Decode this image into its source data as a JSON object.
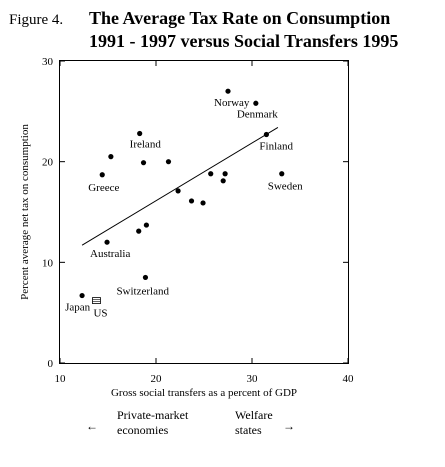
{
  "figure": {
    "label": "Figure 4.",
    "title_line1": "The Average Tax Rate on Consumption",
    "title_line2": "1991 - 1997 versus Social Transfers 1995"
  },
  "chart_data": {
    "type": "scatter",
    "xlabel": "Gross social transfers as a percent of GDP",
    "ylabel": "Percent average net tax on consumption",
    "xlim": [
      10,
      40
    ],
    "ylim": [
      0,
      30
    ],
    "x_ticks": [
      10,
      20,
      30,
      40
    ],
    "y_ticks": [
      0,
      10,
      20,
      30
    ],
    "grid": false,
    "points": [
      {
        "x": 12.3,
        "y": 6.7,
        "label": "Japan"
      },
      {
        "x": 18.3,
        "y": 22.8,
        "label": "Ireland"
      },
      {
        "x": 15.3,
        "y": 20.5,
        "label": ""
      },
      {
        "x": 14.4,
        "y": 18.7,
        "label": "Greece"
      },
      {
        "x": 18.7,
        "y": 19.9,
        "label": ""
      },
      {
        "x": 21.3,
        "y": 20.0,
        "label": ""
      },
      {
        "x": 14.9,
        "y": 12.0,
        "label": "Australia"
      },
      {
        "x": 18.2,
        "y": 13.1,
        "label": ""
      },
      {
        "x": 19.0,
        "y": 13.7,
        "label": ""
      },
      {
        "x": 18.9,
        "y": 8.5,
        "label": "Switzerland"
      },
      {
        "x": 22.3,
        "y": 17.1,
        "label": ""
      },
      {
        "x": 23.7,
        "y": 16.1,
        "label": ""
      },
      {
        "x": 24.9,
        "y": 15.9,
        "label": ""
      },
      {
        "x": 25.7,
        "y": 18.8,
        "label": ""
      },
      {
        "x": 27.0,
        "y": 18.1,
        "label": ""
      },
      {
        "x": 27.2,
        "y": 18.8,
        "label": ""
      },
      {
        "x": 27.5,
        "y": 27.0,
        "label": "Norway"
      },
      {
        "x": 30.4,
        "y": 25.8,
        "label": "Denmark"
      },
      {
        "x": 31.5,
        "y": 22.7,
        "label": "Finland"
      },
      {
        "x": 33.1,
        "y": 18.8,
        "label": "Sweden"
      }
    ],
    "special_points": [
      {
        "x": 13.8,
        "y": 6.2,
        "label": "US"
      }
    ],
    "trend_line": {
      "x": [
        12.3,
        32.7
      ],
      "y": [
        11.7,
        23.4
      ]
    }
  },
  "footer": {
    "left_arrow": "←",
    "left_label_line1": "Private-market",
    "left_label_line2": "economies",
    "right_label_line1": "Welfare",
    "right_label_line2": "states",
    "right_arrow": "→"
  }
}
